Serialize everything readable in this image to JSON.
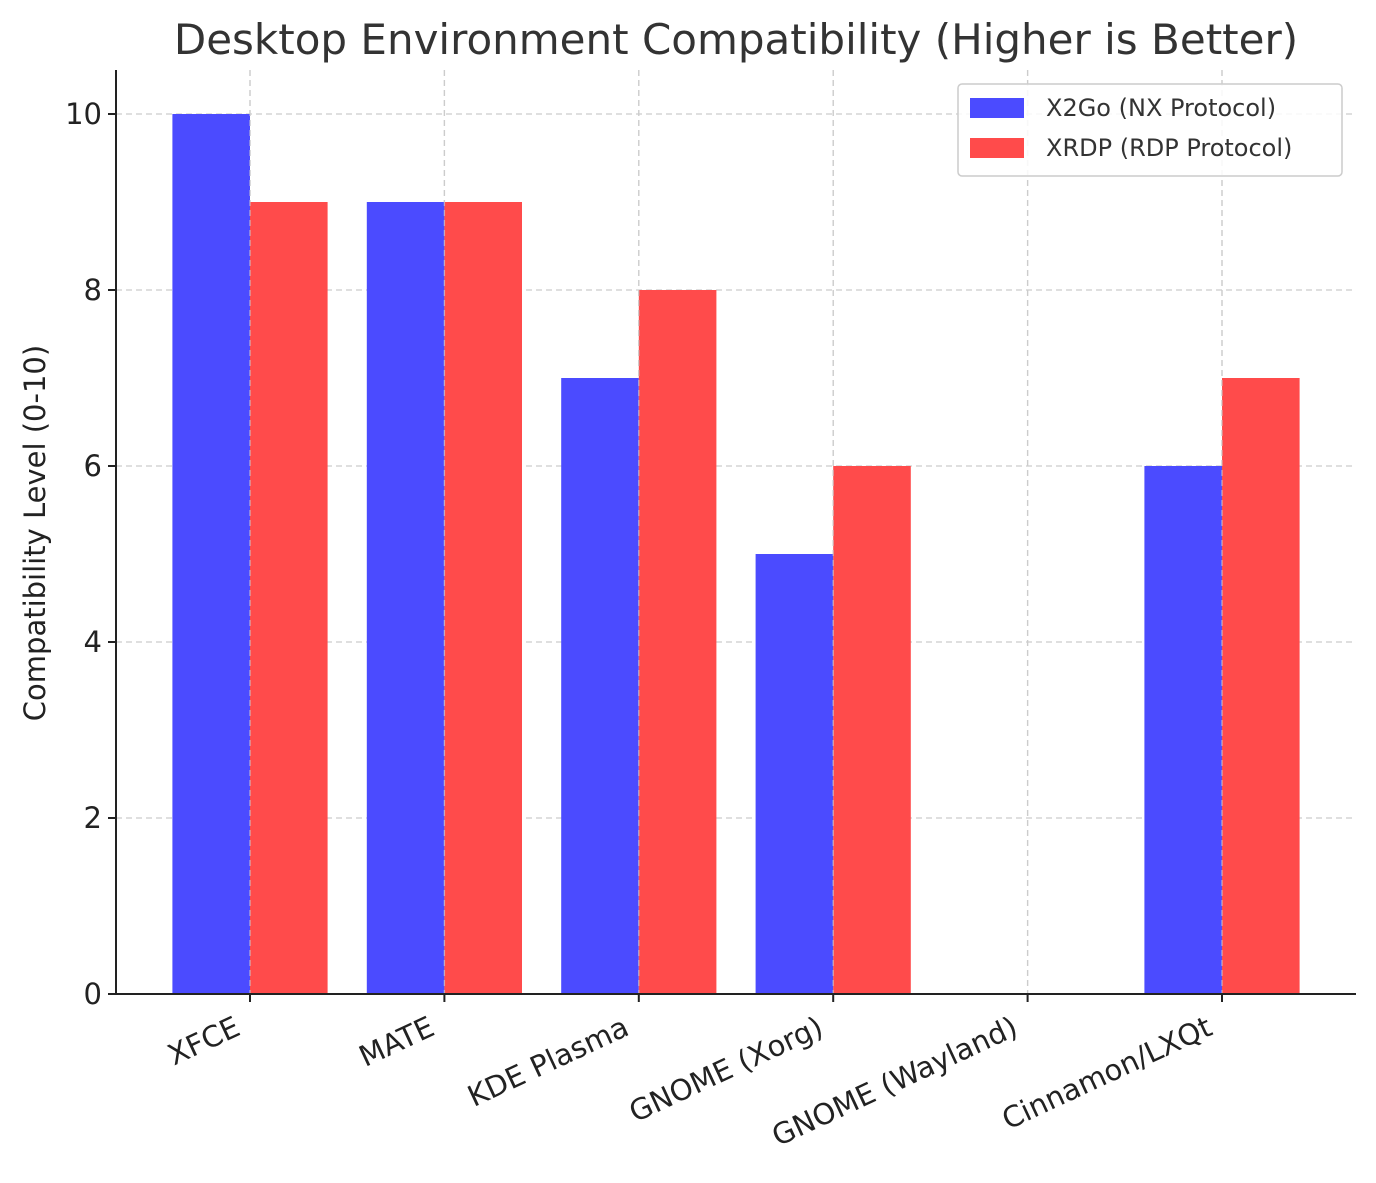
{
  "chart_data": {
    "type": "bar",
    "title": "Desktop Environment Compatibility (Higher is Better)",
    "xlabel": "",
    "ylabel": "Compatibility Level (0-10)",
    "categories": [
      "XFCE",
      "MATE",
      "KDE Plasma",
      "GNOME (Xorg)",
      "GNOME (Wayland)",
      "Cinnamon/LXQt"
    ],
    "series": [
      {
        "name": "X2Go (NX Protocol)",
        "values": [
          10,
          9,
          7,
          5,
          0,
          6
        ],
        "color": "#4b4bff"
      },
      {
        "name": "XRDP (RDP Protocol)",
        "values": [
          9,
          9,
          8,
          6,
          0,
          7
        ],
        "color": "#ff4b4b"
      }
    ],
    "ylim": [
      0,
      10.5
    ],
    "yticks": [
      0,
      2,
      4,
      6,
      8,
      10
    ],
    "grid": true,
    "legend_position": "top-right"
  }
}
